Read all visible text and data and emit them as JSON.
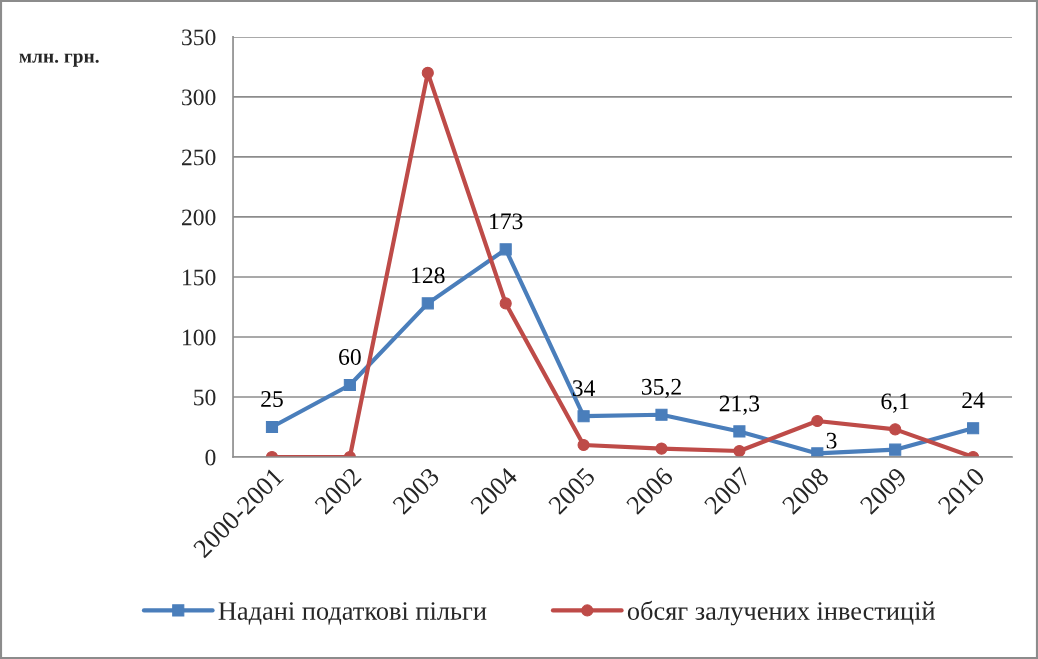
{
  "chart_data": {
    "type": "line",
    "ylabel": "млн. грн.",
    "categories": [
      "2000-2001",
      "2002",
      "2003",
      "2004",
      "2005",
      "2006",
      "2007",
      "2008",
      "2009",
      "2010"
    ],
    "series": [
      {
        "name": "Надані податкові пільги",
        "color": "#4a7ebb",
        "marker": "square",
        "values": [
          25,
          60,
          128,
          173,
          34,
          35.2,
          21.3,
          3,
          6.1,
          24
        ],
        "value_labels": [
          "25",
          "60",
          "128",
          "173",
          "34",
          "35,2",
          "21,3",
          "3",
          "6,1",
          "24"
        ]
      },
      {
        "name": "обсяг залучених інвестицій",
        "color": "#be4b48",
        "marker": "circle",
        "values": [
          0,
          0,
          320,
          128,
          10,
          7,
          5,
          30,
          23,
          0
        ]
      }
    ],
    "ylim": [
      0,
      350
    ],
    "yticks": [
      0,
      50,
      100,
      150,
      200,
      250,
      300,
      350
    ],
    "grid": "y",
    "legend": "bottom"
  }
}
